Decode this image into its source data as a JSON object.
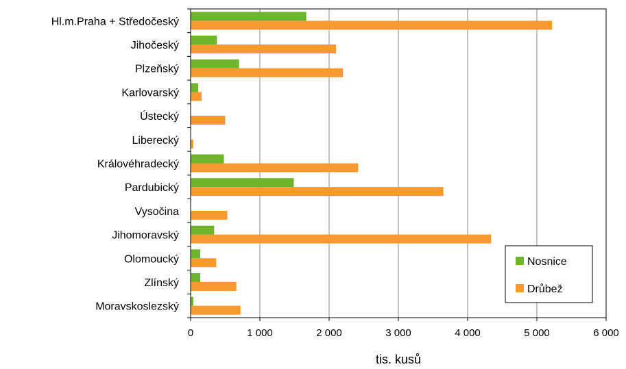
{
  "chart_data": {
    "type": "bar",
    "orientation": "horizontal",
    "categories": [
      "Hl.m.Praha + Středočeský",
      "Jihočeský",
      "Plzeňský",
      "Karlovarský",
      "Ústecký",
      "Liberecký",
      "Královéhradecký",
      "Pardubický",
      "Vysočina",
      "Jihomoravský",
      "Olomoucký",
      "Zlínský",
      "Moravskoslezský"
    ],
    "series": [
      {
        "name": "Nosnice",
        "color": "#6fb52c",
        "values": [
          1670,
          380,
          700,
          110,
          0,
          0,
          480,
          1490,
          0,
          340,
          140,
          140,
          40
        ]
      },
      {
        "name": "Drůbež",
        "color": "#f6992e",
        "values": [
          5220,
          2100,
          2200,
          160,
          500,
          40,
          2420,
          3650,
          530,
          4340,
          370,
          660,
          720
        ]
      }
    ],
    "xlabel": "tis. kusů",
    "ylabel": "",
    "xlim": [
      0,
      6000
    ],
    "ticks": [
      0,
      1000,
      2000,
      3000,
      4000,
      5000,
      6000
    ],
    "tick_labels": [
      "0",
      "1 000",
      "2 000",
      "3 000",
      "4 000",
      "5 000",
      "6 000"
    ],
    "grid": "vertical",
    "legend_position": "bottom-right"
  }
}
